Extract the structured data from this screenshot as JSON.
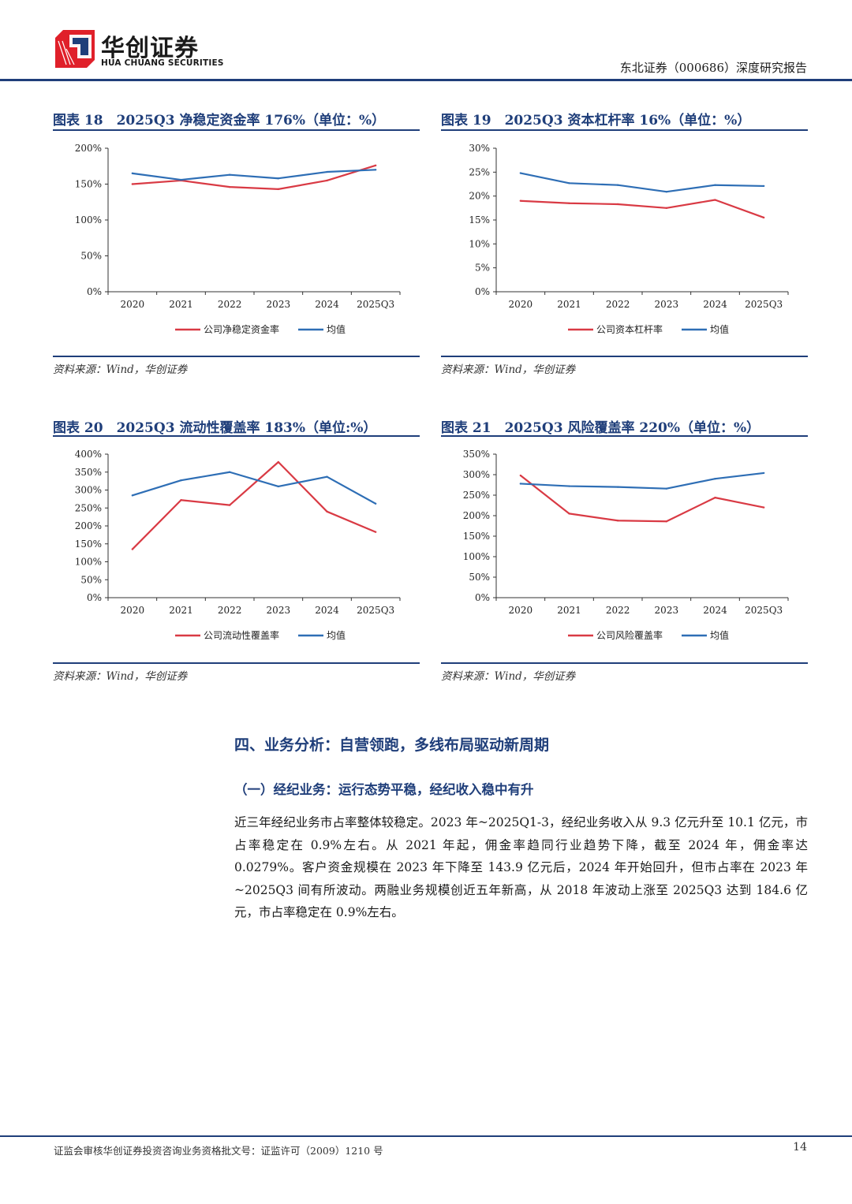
{
  "header": {
    "logo_cn": "华创证券",
    "logo_en": "HUA CHUANG SECURITIES",
    "report_title": "东北证券（000686）深度研究报告",
    "brand_color_red": "#e0202a",
    "brand_color_blue": "#1f3e7a"
  },
  "charts": [
    {
      "title": "图表 18　2025Q3 净稳定资金率 176%（单位：%）",
      "source": "资料来源：Wind，华创证券",
      "chart_data": {
        "type": "line",
        "categories": [
          "2020",
          "2021",
          "2022",
          "2023",
          "2024",
          "2025Q3"
        ],
        "ylim": [
          0,
          200
        ],
        "yticks": [
          0,
          50,
          100,
          150,
          200
        ],
        "ytick_labels": [
          "0%",
          "50%",
          "100%",
          "150%",
          "200%"
        ],
        "series": [
          {
            "name": "公司净稳定资金率",
            "color": "#d93a44",
            "values": [
              150,
              155,
              146,
              143,
              155,
              176
            ]
          },
          {
            "name": "均值",
            "color": "#2e6eb5",
            "values": [
              165,
              156,
              163,
              158,
              167,
              170
            ]
          }
        ],
        "legend": "bottom"
      }
    },
    {
      "title": "图表 19　2025Q3 资本杠杆率 16%（单位：%）",
      "source": "资料来源：Wind，华创证券",
      "chart_data": {
        "type": "line",
        "categories": [
          "2020",
          "2021",
          "2022",
          "2023",
          "2024",
          "2025Q3"
        ],
        "ylim": [
          0,
          30
        ],
        "yticks": [
          0,
          5,
          10,
          15,
          20,
          25,
          30
        ],
        "ytick_labels": [
          "0%",
          "5%",
          "10%",
          "15%",
          "20%",
          "25%",
          "30%"
        ],
        "series": [
          {
            "name": "公司资本杠杆率",
            "color": "#d93a44",
            "values": [
              19.0,
              18.5,
              18.3,
              17.5,
              19.2,
              15.5
            ]
          },
          {
            "name": "均值",
            "color": "#2e6eb5",
            "values": [
              24.8,
              22.7,
              22.3,
              20.9,
              22.3,
              22.1
            ]
          }
        ],
        "legend": "bottom"
      }
    },
    {
      "title": "图表 20　2025Q3 流动性覆盖率 183%（单位:%）",
      "source": "资料来源：Wind，华创证券",
      "chart_data": {
        "type": "line",
        "categories": [
          "2020",
          "2021",
          "2022",
          "2023",
          "2024",
          "2025Q3"
        ],
        "ylim": [
          0,
          400
        ],
        "yticks": [
          0,
          50,
          100,
          150,
          200,
          250,
          300,
          350,
          400
        ],
        "ytick_labels": [
          "0%",
          "50%",
          "100%",
          "150%",
          "200%",
          "250%",
          "300%",
          "350%",
          "400%"
        ],
        "series": [
          {
            "name": "公司流动性覆盖率",
            "color": "#d93a44",
            "values": [
              135,
              272,
              258,
              378,
              240,
              183
            ]
          },
          {
            "name": "均值",
            "color": "#2e6eb5",
            "values": [
              285,
              327,
              350,
              310,
              337,
              262
            ]
          }
        ],
        "legend": "bottom"
      }
    },
    {
      "title": "图表 21　2025Q3 风险覆盖率 220%（单位：%）",
      "source": "资料来源：Wind，华创证券",
      "chart_data": {
        "type": "line",
        "categories": [
          "2020",
          "2021",
          "2022",
          "2023",
          "2024",
          "2025Q3"
        ],
        "ylim": [
          0,
          350
        ],
        "yticks": [
          0,
          50,
          100,
          150,
          200,
          250,
          300,
          350
        ],
        "ytick_labels": [
          "0%",
          "50%",
          "100%",
          "150%",
          "200%",
          "250%",
          "300%",
          "350%"
        ],
        "series": [
          {
            "name": "公司风险覆盖率",
            "color": "#d93a44",
            "values": [
              298,
              205,
              188,
              186,
              244,
              220
            ]
          },
          {
            "name": "均值",
            "color": "#2e6eb5",
            "values": [
              278,
              272,
              270,
              266,
              290,
              304
            ]
          }
        ],
        "legend": "bottom"
      }
    }
  ],
  "section": {
    "heading": "四、业务分析：自营领跑，多线布局驱动新周期",
    "subheading": "（一）经纪业务：运行态势平稳，经纪收入稳中有升",
    "paragraph": "近三年经纪业务市占率整体较稳定。2023 年~2025Q1-3，经纪业务收入从 9.3 亿元升至 10.1 亿元，市占率稳定在 0.9%左右。从 2021 年起，佣金率趋同行业趋势下降，截至 2024 年，佣金率达 0.0279%。客户资金规模在 2023 年下降至 143.9 亿元后，2024 年开始回升，但市占率在 2023 年~2025Q3 间有所波动。两融业务规模创近五年新高，从 2018 年波动上涨至 2025Q3 达到 184.6 亿元，市占率稳定在 0.9%左右。"
  },
  "footer": {
    "license_text": "证监会审核华创证券投资咨询业务资格批文号：证监许可（2009）1210 号",
    "page_number": "14"
  }
}
